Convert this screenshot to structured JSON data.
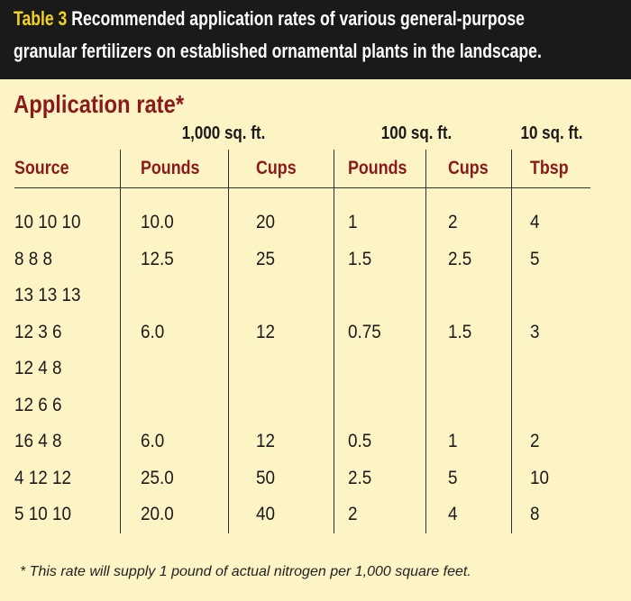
{
  "header": {
    "label": "Table 3",
    "title_lines": [
      "Recommended application rates of various general-purpose",
      "granular fertilizers on established ornamental plants in the landscape."
    ]
  },
  "table": {
    "title": "Application rate*",
    "groups": [
      "1,000 sq. ft.",
      "100 sq. ft.",
      "10 sq. ft."
    ],
    "columns": [
      "Source",
      "Pounds",
      "Cups",
      "Pounds",
      "Cups",
      "Tbsp"
    ],
    "rows": [
      [
        "10 10 10",
        "10.0",
        "20",
        "1",
        "2",
        "4"
      ],
      [
        "8 8 8",
        "12.5",
        "25",
        "1.5",
        "2.5",
        "5"
      ],
      [
        "13 13 13"
      ],
      [
        "12 3 6",
        "6.0",
        "12",
        "0.75",
        "1.5",
        "3"
      ],
      [
        "12 4 8"
      ],
      [
        "12 6 6"
      ],
      [
        "16 4 8",
        "6.0",
        "12",
        "0.5",
        "1",
        "2"
      ],
      [
        "4 12 12",
        "25.0",
        "50",
        "2.5",
        "5",
        "10"
      ],
      [
        "5 10 10",
        "20.0",
        "40",
        "2",
        "4",
        "8"
      ]
    ],
    "footnote": "*  This rate will supply 1 pound of actual nitrogen per 1,000 square feet."
  }
}
